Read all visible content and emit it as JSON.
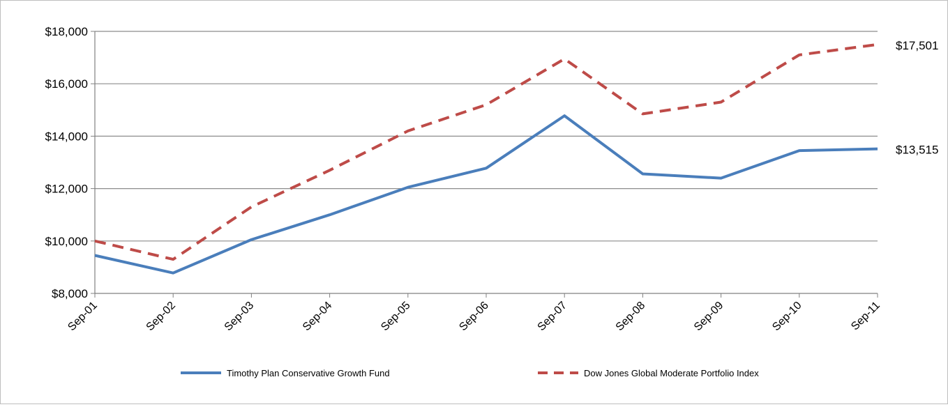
{
  "chart_data": {
    "type": "line",
    "title": "",
    "xlabel": "",
    "ylabel": "",
    "categories": [
      "Sep-01",
      "Sep-02",
      "Sep-03",
      "Sep-04",
      "Sep-05",
      "Sep-06",
      "Sep-07",
      "Sep-08",
      "Sep-09",
      "Sep-10",
      "Sep-11"
    ],
    "ylim": [
      8000,
      18000
    ],
    "yticks": [
      8000,
      10000,
      12000,
      14000,
      16000,
      18000
    ],
    "ytick_labels": [
      "$8,000",
      "$10,000",
      "$12,000",
      "$14,000",
      "$16,000",
      "$18,000"
    ],
    "grid": true,
    "legend_position": "bottom",
    "series": [
      {
        "name": "Timothy Plan Conservative Growth Fund",
        "values": [
          9450,
          8780,
          10050,
          11000,
          12050,
          12780,
          14780,
          12560,
          12400,
          13450,
          13515
        ],
        "color": "#4a7ebb",
        "style": "solid",
        "end_label": "$13,515"
      },
      {
        "name": "Dow Jones Global Moderate Portfolio Index",
        "values": [
          10000,
          9300,
          11300,
          12700,
          14200,
          15200,
          16950,
          14850,
          15300,
          17100,
          17501
        ],
        "color": "#be4b48",
        "style": "dashed",
        "end_label": "$17,501"
      }
    ]
  }
}
